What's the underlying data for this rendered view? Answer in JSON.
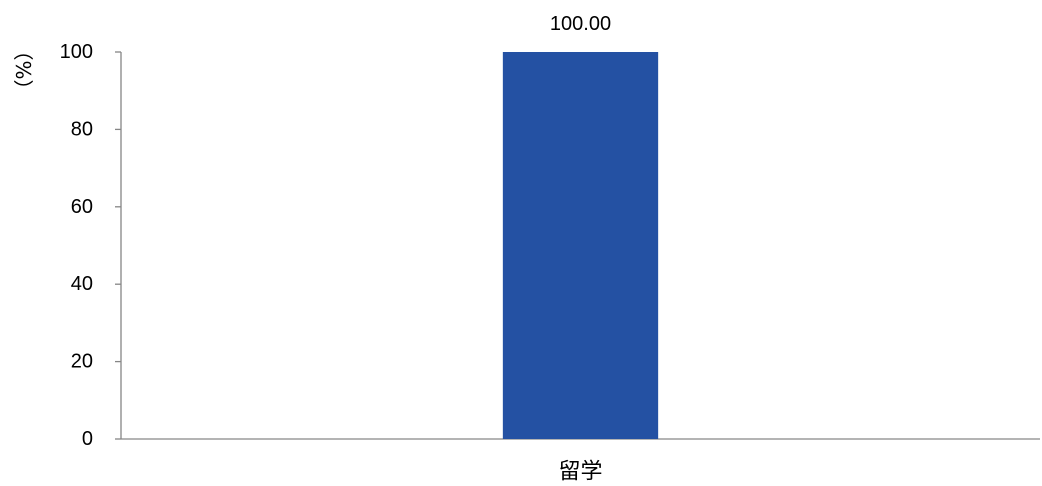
{
  "chart_data": {
    "type": "bar",
    "categories": [
      "留学"
    ],
    "series": [
      {
        "values": [
          100
        ],
        "data_labels": [
          "100.00"
        ],
        "color": "#2451A3"
      }
    ],
    "ylabel": "（%）",
    "ylim": [
      0,
      100
    ],
    "yticks": [
      0,
      20,
      40,
      60,
      80,
      100
    ],
    "grid": false,
    "legend": "none",
    "axis_color": "#868686"
  }
}
